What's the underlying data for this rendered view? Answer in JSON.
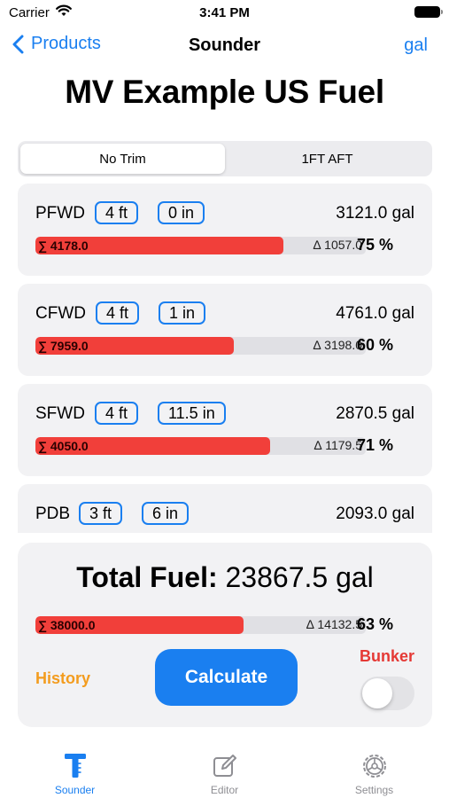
{
  "status_bar": {
    "carrier": "Carrier",
    "time": "3:41 PM"
  },
  "nav": {
    "back_label": "Products",
    "title": "Sounder",
    "unit_button": "gal"
  },
  "page_title": "MV Example US Fuel",
  "segments": [
    {
      "label": "No Trim",
      "selected": true
    },
    {
      "label": "1FT AFT",
      "selected": false
    }
  ],
  "tanks": [
    {
      "name": "PFWD",
      "feet": "4 ft",
      "inches": "0 in",
      "volume": "3121.0 gal",
      "sum": "∑ 4178.0",
      "delta": "∆ 1057.0",
      "percent": "75 %",
      "fill_fraction": 0.75
    },
    {
      "name": "CFWD",
      "feet": "4 ft",
      "inches": "1 in",
      "volume": "4761.0 gal",
      "sum": "∑ 7959.0",
      "delta": "∆ 3198.0",
      "percent": "60 %",
      "fill_fraction": 0.6
    },
    {
      "name": "SFWD",
      "feet": "4 ft",
      "inches": "11.5 in",
      "volume": "2870.5 gal",
      "sum": "∑ 4050.0",
      "delta": "∆ 1179.5",
      "percent": "71 %",
      "fill_fraction": 0.71
    },
    {
      "name": "PDB",
      "feet": "3 ft",
      "inches": "6 in",
      "volume": "2093.0 gal"
    }
  ],
  "total": {
    "label": "Total Fuel:",
    "value": "23867.5 gal",
    "sum": "∑ 38000.0",
    "delta": "∆ 14132.5",
    "percent": "63 %",
    "fill_fraction": 0.63
  },
  "actions": {
    "history_label": "History",
    "calculate_label": "Calculate",
    "bunker_label": "Bunker",
    "bunker_on": false
  },
  "tabs": [
    {
      "label": "Sounder",
      "icon": "sounder-icon",
      "active": true
    },
    {
      "label": "Editor",
      "icon": "editor-icon",
      "active": false
    },
    {
      "label": "Settings",
      "icon": "settings-icon",
      "active": false
    }
  ],
  "colors": {
    "accent": "#1a7ff0",
    "bar_fill": "#f13f3a",
    "history": "#f39c1e",
    "bunker": "#e53935"
  }
}
